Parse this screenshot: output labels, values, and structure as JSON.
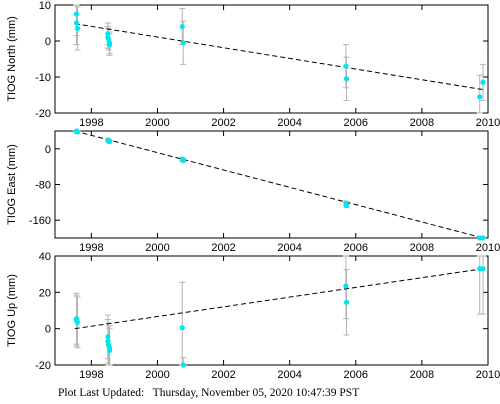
{
  "footer": {
    "label": "Plot Last Updated:",
    "timestamp": "Thursday, November 05, 2020 10:47:39 PST"
  },
  "colors": {
    "points": "#00e5ee",
    "error_bars": "#b4b4b4",
    "trend_line": "#000000"
  },
  "chart_data": [
    {
      "type": "scatter",
      "ylabel": "TIOG North (mm)",
      "xlim": [
        1996.9,
        2010.0
      ],
      "ylim": [
        -20,
        10
      ],
      "xticks": [
        1998,
        2000,
        2002,
        2004,
        2006,
        2008,
        2010
      ],
      "yticks": [
        -20,
        -10,
        0,
        10
      ],
      "trend": {
        "x": [
          1997.5,
          2009.85
        ],
        "y": [
          4.8,
          -13.5
        ]
      },
      "points": [
        {
          "x": 1997.55,
          "y": 7.5,
          "err": 6
        },
        {
          "x": 1997.55,
          "y": 5.0,
          "err": 6
        },
        {
          "x": 1997.58,
          "y": 3.5,
          "err": 6
        },
        {
          "x": 1998.5,
          "y": 2.0,
          "err": 3
        },
        {
          "x": 1998.5,
          "y": 1.0,
          "err": 3
        },
        {
          "x": 1998.52,
          "y": 0.5,
          "err": 3
        },
        {
          "x": 1998.55,
          "y": -0.5,
          "err": 3
        },
        {
          "x": 1998.55,
          "y": -1.0,
          "err": 3
        },
        {
          "x": 2000.75,
          "y": 4.0,
          "err": 5
        },
        {
          "x": 2000.78,
          "y": -0.5,
          "err": 6
        },
        {
          "x": 2005.7,
          "y": -7.0,
          "err": 6
        },
        {
          "x": 2005.72,
          "y": -10.5,
          "err": 6
        },
        {
          "x": 2009.75,
          "y": -15.5,
          "err": 6
        },
        {
          "x": 2009.85,
          "y": -11.5,
          "err": 5
        }
      ]
    },
    {
      "type": "scatter",
      "ylabel": "TIOG East (mm)",
      "xlim": [
        1996.9,
        2010.0
      ],
      "ylim": [
        -200,
        40
      ],
      "xticks": [
        1998,
        2000,
        2002,
        2004,
        2006,
        2008,
        2010
      ],
      "yticks": [
        -160,
        -80,
        0
      ],
      "trend": {
        "x": [
          1997.5,
          2009.85
        ],
        "y": [
          40,
          -200
        ]
      },
      "points": [
        {
          "x": 1997.55,
          "y": 40,
          "err": 4
        },
        {
          "x": 1997.58,
          "y": 38,
          "err": 4
        },
        {
          "x": 1998.5,
          "y": 20,
          "err": 3
        },
        {
          "x": 1998.52,
          "y": 18,
          "err": 3
        },
        {
          "x": 1998.55,
          "y": 16,
          "err": 3
        },
        {
          "x": 2000.75,
          "y": -23,
          "err": 4
        },
        {
          "x": 2000.78,
          "y": -26,
          "err": 4
        },
        {
          "x": 2005.7,
          "y": -122,
          "err": 5
        },
        {
          "x": 2005.72,
          "y": -127,
          "err": 5
        },
        {
          "x": 2009.75,
          "y": -201,
          "err": 5
        },
        {
          "x": 2009.85,
          "y": -203,
          "err": 5
        }
      ]
    },
    {
      "type": "scatter",
      "ylabel": "TIOG Up (mm)",
      "xlim": [
        1996.9,
        2010.0
      ],
      "ylim": [
        -20,
        40
      ],
      "xticks": [
        1998,
        2000,
        2002,
        2004,
        2006,
        2008,
        2010
      ],
      "yticks": [
        -20,
        0,
        20,
        40
      ],
      "trend": {
        "x": [
          1997.5,
          2009.85
        ],
        "y": [
          0,
          33
        ]
      },
      "points": [
        {
          "x": 1997.55,
          "y": 5.5,
          "err": 14
        },
        {
          "x": 1997.55,
          "y": 4.5,
          "err": 14
        },
        {
          "x": 1997.58,
          "y": 3.5,
          "err": 14
        },
        {
          "x": 1998.5,
          "y": -4.5,
          "err": 12
        },
        {
          "x": 1998.5,
          "y": -7.0,
          "err": 12
        },
        {
          "x": 1998.52,
          "y": -9.0,
          "err": 12
        },
        {
          "x": 1998.55,
          "y": -10.5,
          "err": 12
        },
        {
          "x": 1998.55,
          "y": -12.0,
          "err": 12
        },
        {
          "x": 2000.75,
          "y": 0.5,
          "err": 25
        },
        {
          "x": 2000.78,
          "y": -20,
          "err": 4
        },
        {
          "x": 2005.7,
          "y": 23.5,
          "err": 18
        },
        {
          "x": 2005.72,
          "y": 14.5,
          "err": 18
        },
        {
          "x": 2009.75,
          "y": 33,
          "err": 25
        },
        {
          "x": 2009.85,
          "y": 33,
          "err": 25
        }
      ]
    }
  ]
}
